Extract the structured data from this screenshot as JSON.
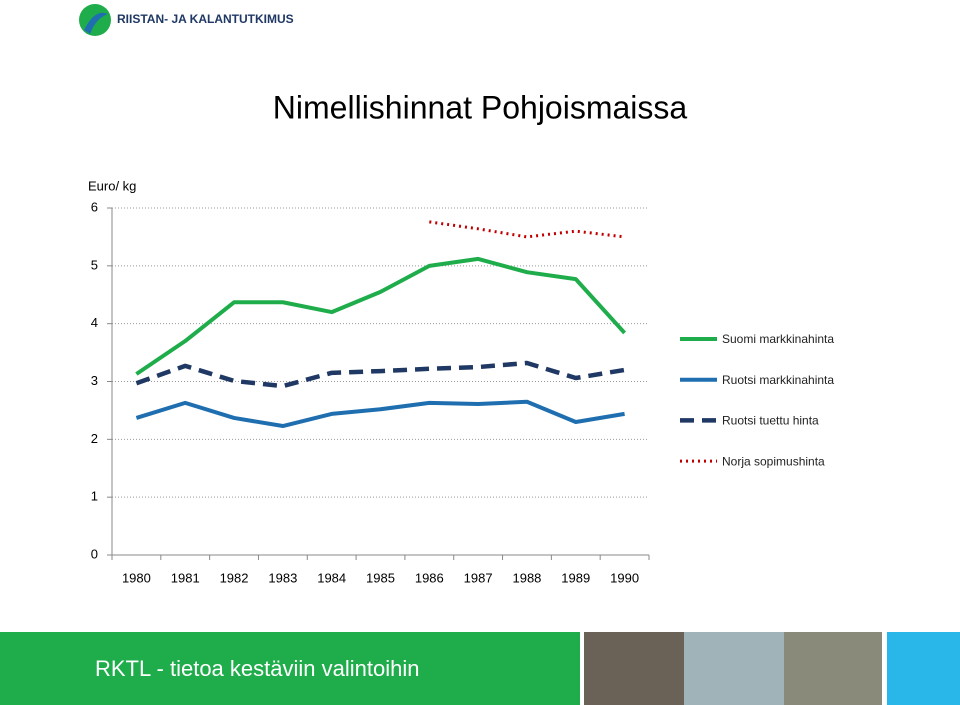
{
  "header": {
    "logo_text": "RIISTAN- JA KALANTUTKIMUS"
  },
  "chart_data": {
    "type": "line",
    "title": "Nimellishinnat Pohjoismaissa",
    "y_label": "Euro/ kg",
    "categories": [
      "1980",
      "1981",
      "1982",
      "1983",
      "1984",
      "1985",
      "1986",
      "1987",
      "1988",
      "1989",
      "1990"
    ],
    "series": [
      {
        "name": "Suomi markkinahinta",
        "color": "#1fad4b",
        "style": "solid",
        "values": [
          3.13,
          3.7,
          4.37,
          4.37,
          4.2,
          4.55,
          5.0,
          5.12,
          4.89,
          4.77,
          3.84
        ]
      },
      {
        "name": "Ruotsi markkinahinta",
        "color": "#1f6fb0",
        "style": "solid",
        "values": [
          2.37,
          2.63,
          2.37,
          2.23,
          2.44,
          2.52,
          2.63,
          2.61,
          2.65,
          2.3,
          2.44
        ]
      },
      {
        "name": "Ruotsi tuettu hinta",
        "color": "#1f3864",
        "style": "dashed",
        "values": [
          2.97,
          3.27,
          3.01,
          2.92,
          3.15,
          3.18,
          3.22,
          3.25,
          3.32,
          3.06,
          3.2
        ]
      },
      {
        "name": "Norja sopimushinta",
        "color": "#c00000",
        "style": "dotted",
        "values": [
          null,
          null,
          null,
          null,
          null,
          null,
          5.76,
          5.64,
          5.5,
          5.6,
          5.5
        ]
      }
    ],
    "ylim": [
      0,
      6
    ],
    "yticks": [
      0,
      1,
      2,
      3,
      4,
      5,
      6
    ],
    "grid": true
  },
  "footer": {
    "text": "RKTL - tietoa kestäviin valintoihin"
  }
}
